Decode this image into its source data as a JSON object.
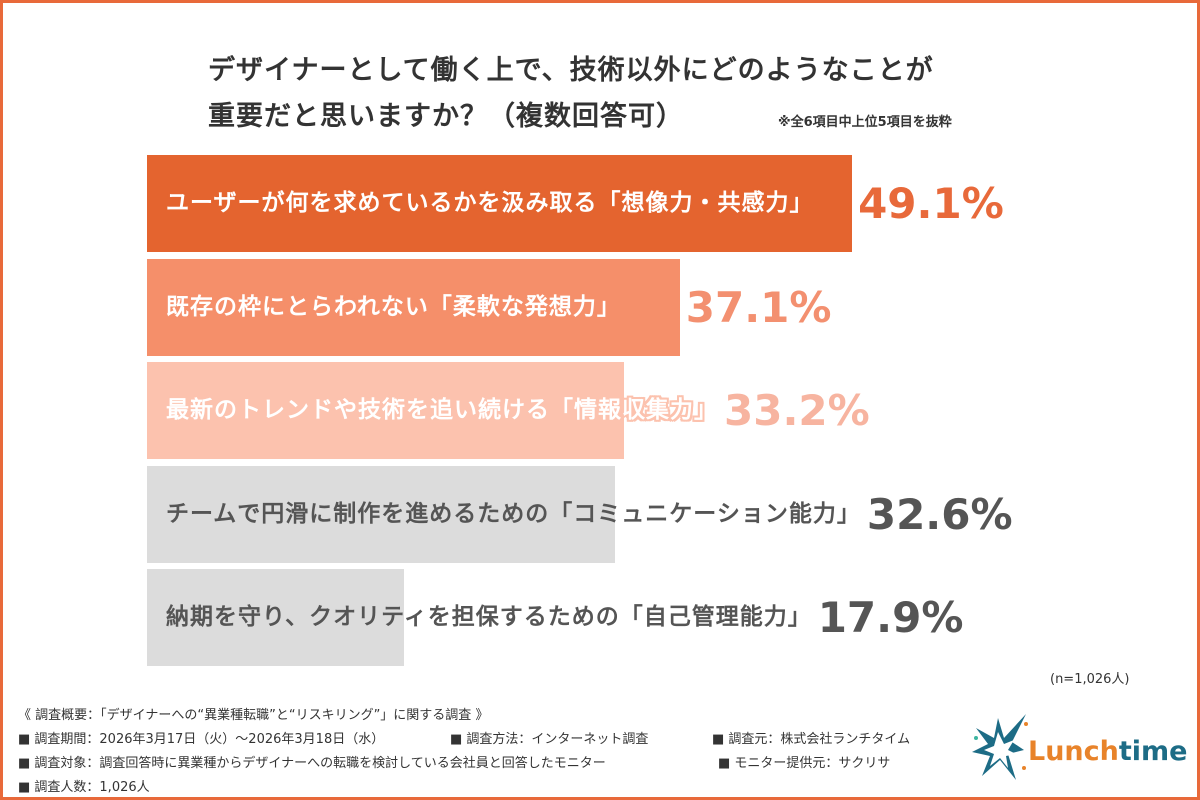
{
  "chart_data": {
    "type": "bar",
    "orientation": "horizontal",
    "title": "デザイナーとして働く上で、技術以外にどのようなことが重要だと思いますか？（複数回答可）",
    "subtitle": "※全6項目中上位5項目を抜粋",
    "categories": [
      "ユーザーが何を求めているかを汲み取る「想像力・共感力」",
      "既存の枠にとらわれない「柔軟な発想力」",
      "最新のトレンドや技術を追い続ける「情報収集力」",
      "チームで円滑に制作を進めるための「コミュニケーション能力」",
      "納期を守り、クオリティを担保するための「自己管理能力」"
    ],
    "values": [
      49.1,
      37.1,
      33.2,
      32.6,
      17.9
    ],
    "value_labels": [
      "49.1%",
      "37.1%",
      "33.2%",
      "32.6%",
      "17.9%"
    ],
    "bar_colors": [
      "#e4642f",
      "#f58f6a",
      "#fcc2ae",
      "#dcdcdc",
      "#dcdcdc"
    ],
    "label_colors": [
      "#ffffff",
      "#ffffff",
      "#ffffff",
      "#555555",
      "#555555"
    ],
    "value_colors": [
      "#e8693a",
      "#f39070",
      "#f7b4a0",
      "#555555",
      "#555555"
    ],
    "xlim": [
      0,
      100
    ],
    "grid": false,
    "sample": "(n=1,026人)"
  },
  "title_lines": [
    "デザイナーとして働く上で、技術以外にどのようなことが",
    "重要だと思いますか？（複数回答可）"
  ],
  "footer": {
    "heading": "《 調査概要：「デザイナーへの“異業種転職”と“リスキリング”」に関する調査 》",
    "period": "■ 調査期間：2026年3月17日（火）〜2026年3月18日（水）",
    "method": "■ 調査方法：インターネット調査",
    "source": "■ 調査元：株式会社ランチタイム",
    "target": "■ 調査対象：調査回答時に異業種からデザイナーへの転職を検討している会社員と回答したモニター",
    "provider": "■ モニター提供元：サクリサ",
    "count": "■ 調査人数：1,026人"
  },
  "logo": {
    "text_a": "Lunch",
    "text_b": "time",
    "color_a": "#e8832a",
    "color_b": "#1d6c86"
  }
}
